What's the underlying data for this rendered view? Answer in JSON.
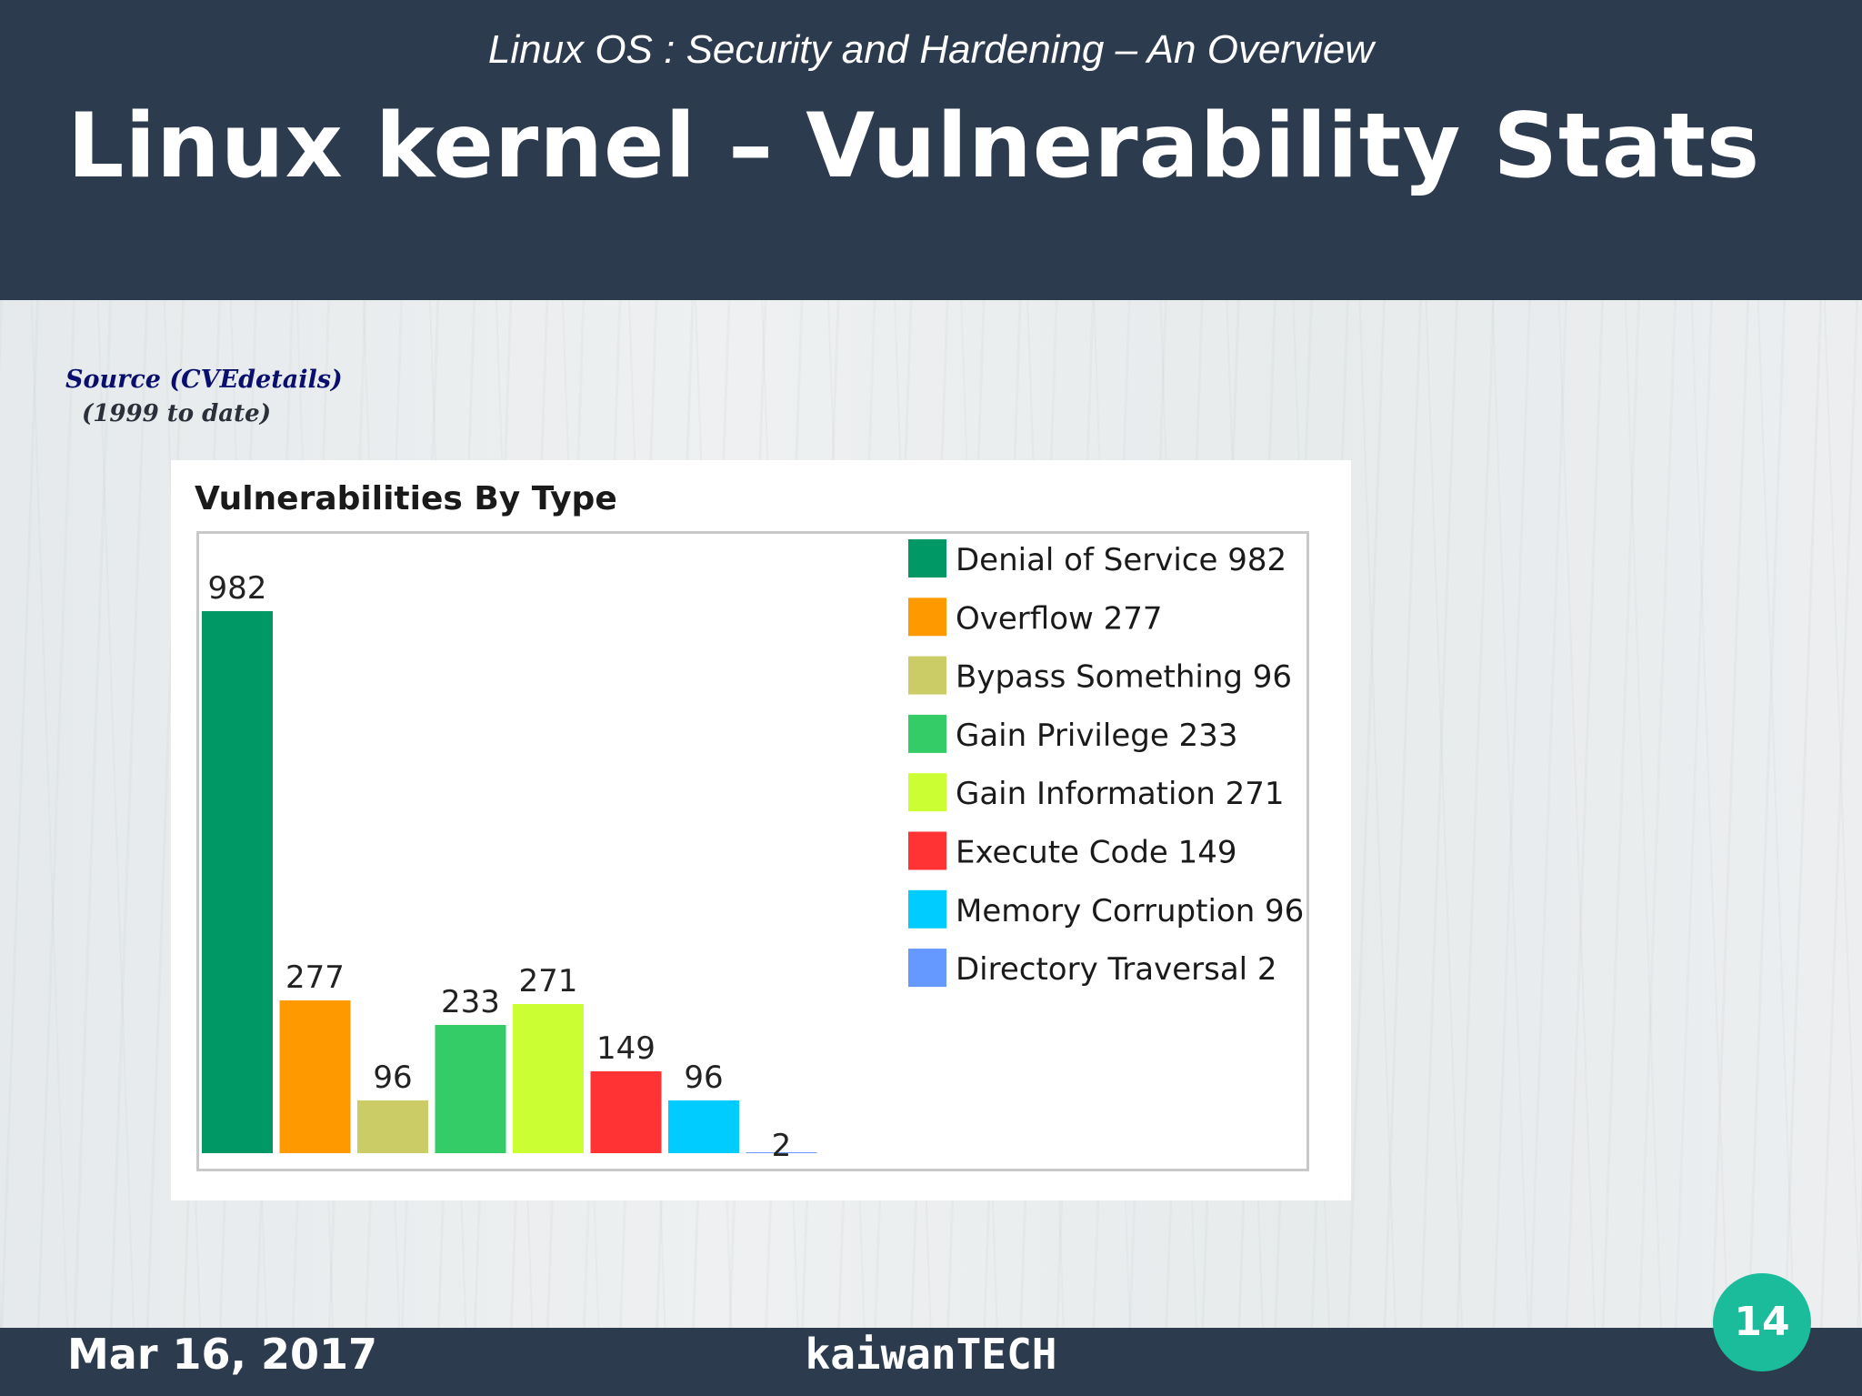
{
  "slide": {
    "subtitle": "Linux OS : Security and Hardening – An Overview",
    "title": "Linux kernel – Vulnerability Stats",
    "source_line1": "Source (CVEdetails)",
    "source_line2": "(1999 to date)",
    "footer_date": "Mar 16, 2017",
    "footer_brand": "kaiwanTECH",
    "page_number": "14"
  },
  "chart_data": {
    "type": "bar",
    "title": "Vulnerabilities By Type",
    "categories": [
      "Denial of Service",
      "Overflow",
      "Bypass Something",
      "Gain Privilege",
      "Gain Information",
      "Execute Code",
      "Memory Corruption",
      "Directory Traversal"
    ],
    "values": [
      982,
      277,
      96,
      233,
      271,
      149,
      96,
      2
    ],
    "colors": [
      "#009966",
      "#ff9900",
      "#cccc66",
      "#33cc66",
      "#ccff33",
      "#ff3333",
      "#00ccff",
      "#6699ff"
    ],
    "legend": [
      "Denial of Service 982",
      "Overflow 277",
      "Bypass Something 96",
      "Gain Privilege 233",
      "Gain Information 271",
      "Execute Code 149",
      "Memory Corruption 96",
      "Directory Traversal 2"
    ],
    "legend_position": "right",
    "grid": false
  }
}
